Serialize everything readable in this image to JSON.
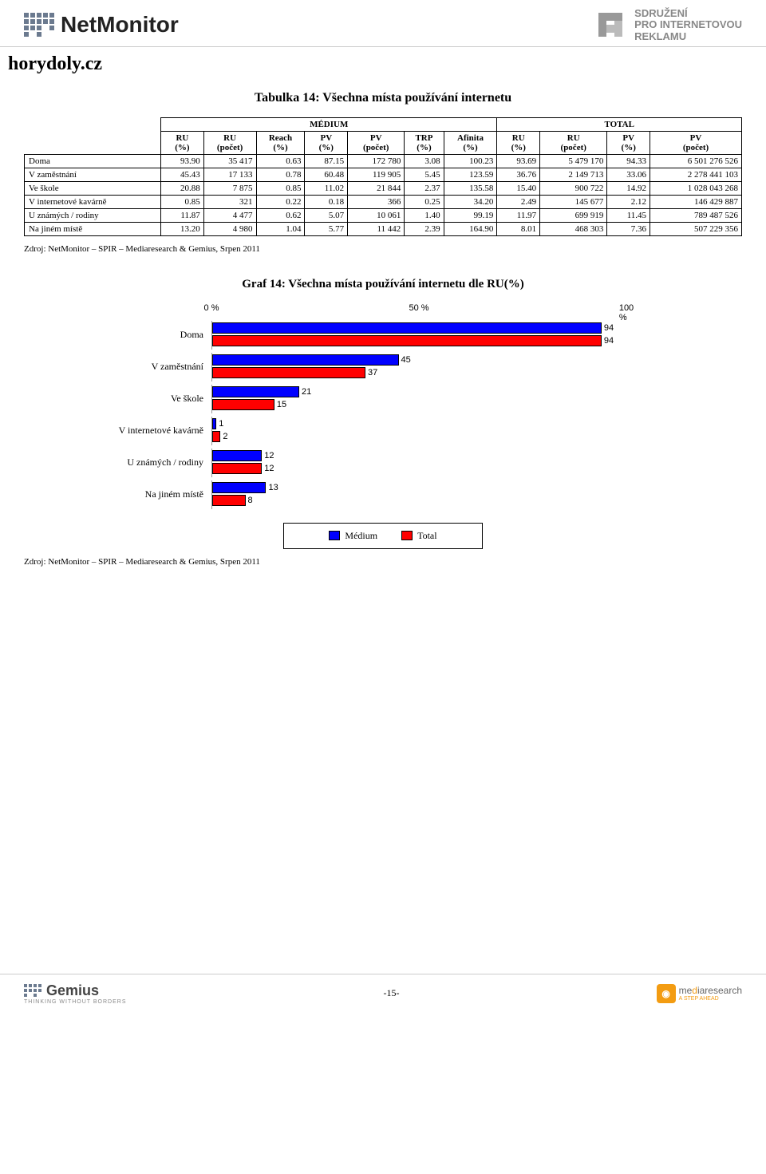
{
  "header": {
    "logo_left_text": "NetMonitor",
    "logo_right_lines": [
      "SDRUŽENÍ",
      "PRO INTERNETOVOU",
      "REKLAMU"
    ]
  },
  "page_title": "horydoly.cz",
  "table": {
    "title": "Tabulka 14: Všechna místa používání internetu",
    "group_headers": [
      "MÉDIUM",
      "TOTAL"
    ],
    "columns": [
      "RU\n(%)",
      "RU\n(počet)",
      "Reach\n(%)",
      "PV\n(%)",
      "PV\n(počet)",
      "TRP\n(%)",
      "Afinita\n(%)",
      "RU\n(%)",
      "RU\n(počet)",
      "PV\n(%)",
      "PV\n(počet)"
    ],
    "rows": [
      {
        "label": "Doma",
        "cells": [
          "93.90",
          "35 417",
          "0.63",
          "87.15",
          "172 780",
          "3.08",
          "100.23",
          "93.69",
          "5 479 170",
          "94.33",
          "6 501 276 526"
        ]
      },
      {
        "label": "V zaměstnání",
        "cells": [
          "45.43",
          "17 133",
          "0.78",
          "60.48",
          "119 905",
          "5.45",
          "123.59",
          "36.76",
          "2 149 713",
          "33.06",
          "2 278 441 103"
        ]
      },
      {
        "label": "Ve škole",
        "cells": [
          "20.88",
          "7 875",
          "0.85",
          "11.02",
          "21 844",
          "2.37",
          "135.58",
          "15.40",
          "900 722",
          "14.92",
          "1 028 043 268"
        ]
      },
      {
        "label": "V internetové kavárně",
        "cells": [
          "0.85",
          "321",
          "0.22",
          "0.18",
          "366",
          "0.25",
          "34.20",
          "2.49",
          "145 677",
          "2.12",
          "146 429 887"
        ]
      },
      {
        "label": "U známých / rodiny",
        "cells": [
          "11.87",
          "4 477",
          "0.62",
          "5.07",
          "10 061",
          "1.40",
          "99.19",
          "11.97",
          "699 919",
          "11.45",
          "789 487 526"
        ]
      },
      {
        "label": "Na jiném místě",
        "cells": [
          "13.20",
          "4 980",
          "1.04",
          "5.77",
          "11 442",
          "2.39",
          "164.90",
          "8.01",
          "468 303",
          "7.36",
          "507 229 356"
        ]
      }
    ]
  },
  "source_text": "Zdroj: NetMonitor – SPIR – Mediaresearch & Gemius, Srpen 2011",
  "chart": {
    "title": "Graf 14: Všechna místa používání internetu dle RU(%)",
    "axis_labels": [
      "0 %",
      "50 %",
      "100 %"
    ],
    "axis_values": [
      0,
      50,
      100
    ],
    "max": 100,
    "color_medium": "#0000ff",
    "color_total": "#ff0000",
    "categories": [
      {
        "label": "Doma",
        "medium": 94,
        "total": 94
      },
      {
        "label": "V zaměstnání",
        "medium": 45,
        "total": 37
      },
      {
        "label": "Ve škole",
        "medium": 21,
        "total": 15
      },
      {
        "label": "V internetové kavárně",
        "medium": 1,
        "total": 2
      },
      {
        "label": "U známých / rodiny",
        "medium": 12,
        "total": 12
      },
      {
        "label": "Na jiném místě",
        "medium": 13,
        "total": 8
      }
    ],
    "legend": {
      "medium": "Médium",
      "total": "Total"
    }
  },
  "footer": {
    "logo_left_text": "Gemius",
    "logo_left_sub": "THINKING WITHOUT BORDERS",
    "page_num": "-15-",
    "logo_right_text": "mediaresearch",
    "logo_right_sub": "A STEP AHEAD"
  }
}
